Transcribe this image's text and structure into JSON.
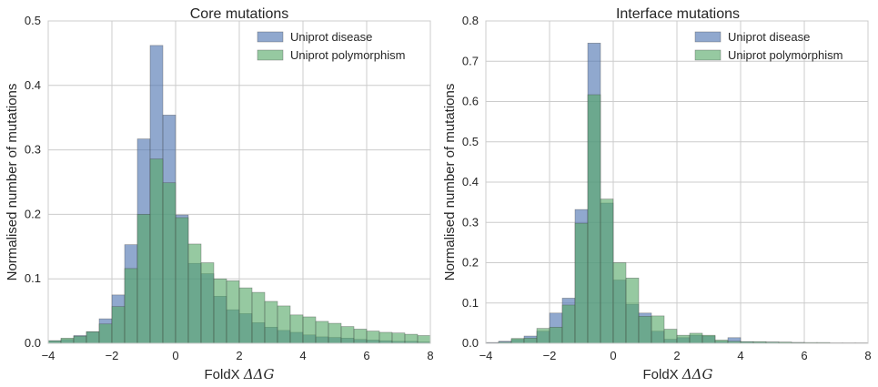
{
  "colors": {
    "disease": "#4c72b0",
    "polymorphism": "#55a868",
    "grid": "#cccccc",
    "spine": "#cccccc",
    "text": "#262626"
  },
  "chart_data": [
    {
      "type": "bar",
      "title": "Core mutations",
      "xlabel": "FoldX ",
      "xlabel_math": "ΔΔG",
      "ylabel": "Normalised number of mutations",
      "xlim": [
        -4,
        8
      ],
      "ylim": [
        0,
        0.5
      ],
      "xticks": [
        "−4",
        "−2",
        "0",
        "2",
        "4",
        "6",
        "8"
      ],
      "yticks": [
        "0.0",
        "0.1",
        "0.2",
        "0.3",
        "0.4",
        "0.5"
      ],
      "grid": true,
      "legend_position": "top-right",
      "bin_edges": [
        -4,
        -3.6,
        -3.2,
        -2.8,
        -2.4,
        -2.0,
        -1.6,
        -1.2,
        -0.8,
        -0.4,
        0.0,
        0.4,
        0.8,
        1.2,
        1.6,
        2.0,
        2.4,
        2.8,
        3.2,
        3.6,
        4.0,
        4.4,
        4.8,
        5.2,
        5.6,
        6.0,
        6.4,
        6.8,
        7.2,
        7.6,
        8.0
      ],
      "series": [
        {
          "name": "Uniprot disease",
          "values": [
            0.004,
            0.006,
            0.012,
            0.018,
            0.038,
            0.075,
            0.153,
            0.317,
            0.462,
            0.354,
            0.199,
            0.124,
            0.108,
            0.073,
            0.052,
            0.046,
            0.032,
            0.025,
            0.02,
            0.017,
            0.013,
            0.01,
            0.009,
            0.008,
            0.006,
            0.005,
            0.004,
            0.003,
            0.003,
            0.002
          ]
        },
        {
          "name": "Uniprot polymorphism",
          "values": [
            0.004,
            0.008,
            0.011,
            0.018,
            0.03,
            0.057,
            0.116,
            0.2,
            0.286,
            0.249,
            0.195,
            0.154,
            0.125,
            0.1,
            0.097,
            0.086,
            0.079,
            0.065,
            0.058,
            0.044,
            0.041,
            0.034,
            0.031,
            0.026,
            0.022,
            0.019,
            0.017,
            0.016,
            0.014,
            0.012
          ]
        }
      ]
    },
    {
      "type": "bar",
      "title": "Interface mutations",
      "xlabel": "FoldX ",
      "xlabel_math": "ΔΔG",
      "ylabel": "Normalised number of mutations",
      "xlim": [
        -4,
        8
      ],
      "ylim": [
        0,
        0.8
      ],
      "xticks": [
        "−4",
        "−2",
        "0",
        "2",
        "4",
        "6",
        "8"
      ],
      "yticks": [
        "0.0",
        "0.1",
        "0.2",
        "0.3",
        "0.4",
        "0.5",
        "0.6",
        "0.7",
        "0.8"
      ],
      "grid": true,
      "legend_position": "top-right",
      "bin_edges": [
        -4,
        -3.6,
        -3.2,
        -2.8,
        -2.4,
        -2.0,
        -1.6,
        -1.2,
        -0.8,
        -0.4,
        0.0,
        0.4,
        0.8,
        1.2,
        1.6,
        2.0,
        2.4,
        2.8,
        3.2,
        3.6,
        4.0,
        4.4,
        4.8,
        5.2,
        5.6,
        6.0,
        6.4,
        6.8,
        7.2,
        7.6,
        8.0
      ],
      "series": [
        {
          "name": "Uniprot disease",
          "values": [
            0.002,
            0.005,
            0.01,
            0.018,
            0.03,
            0.075,
            0.112,
            0.332,
            0.745,
            0.348,
            0.157,
            0.097,
            0.075,
            0.03,
            0.01,
            0.014,
            0.02,
            0.018,
            0.005,
            0.014,
            0.004,
            0.003,
            0.003,
            0.002,
            0.002,
            0.001,
            0.001,
            0.001,
            0.001,
            0.001
          ]
        },
        {
          "name": "Uniprot polymorphism",
          "values": [
            0.001,
            0.003,
            0.012,
            0.013,
            0.037,
            0.04,
            0.095,
            0.298,
            0.617,
            0.358,
            0.2,
            0.162,
            0.067,
            0.068,
            0.035,
            0.02,
            0.025,
            0.02,
            0.008,
            0.005,
            0.004,
            0.004,
            0.003,
            0.003,
            0.002,
            0.002,
            0.002,
            0.001,
            0.001,
            0.001
          ]
        }
      ]
    }
  ]
}
